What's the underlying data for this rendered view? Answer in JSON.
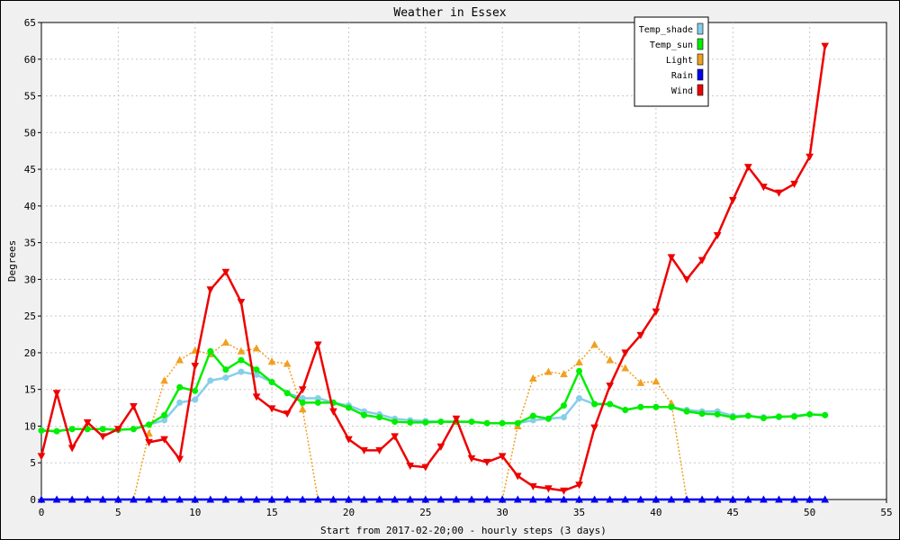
{
  "chart_data": {
    "type": "line",
    "title": "Weather in Essex",
    "xlabel": "Start from 2017-02-20;00 - hourly steps (3 days)",
    "ylabel": "Degrees",
    "xlim": [
      0,
      55
    ],
    "ylim": [
      0,
      65
    ],
    "xticks": [
      0,
      5,
      10,
      15,
      20,
      25,
      30,
      35,
      40,
      45,
      50,
      55
    ],
    "yticks": [
      0,
      5,
      10,
      15,
      20,
      25,
      30,
      35,
      40,
      45,
      50,
      55,
      60,
      65
    ],
    "grid": true,
    "legend_position": "top-right",
    "x": [
      0,
      1,
      2,
      3,
      4,
      5,
      6,
      7,
      8,
      9,
      10,
      11,
      12,
      13,
      14,
      15,
      16,
      17,
      18,
      19,
      20,
      21,
      22,
      23,
      24,
      25,
      26,
      27,
      28,
      29,
      30,
      31,
      32,
      33,
      34,
      35,
      36,
      37,
      38,
      39,
      40,
      41,
      42,
      43,
      44,
      45,
      46,
      47,
      48,
      49,
      50,
      51
    ],
    "series": [
      {
        "name": "Temp_shade",
        "color": "#87ceeb",
        "style": "solid",
        "marker": "circle",
        "values": [
          9.4,
          9.3,
          9.6,
          9.6,
          9.6,
          9.5,
          9.6,
          10.2,
          10.8,
          13.2,
          13.6,
          16.2,
          16.6,
          17.4,
          17,
          16,
          14.5,
          13.8,
          13.8,
          13.2,
          12.8,
          12,
          11.6,
          11,
          10.8,
          10.7,
          10.6,
          10.6,
          10.6,
          10.4,
          10.4,
          10.4,
          10.8,
          11,
          11.2,
          13.8,
          13,
          13,
          12.2,
          12.6,
          12.6,
          12.6,
          12.2,
          12,
          12,
          11.4,
          11.4,
          11.2,
          11.2,
          11.4,
          11.6,
          11.5
        ]
      },
      {
        "name": "Temp_sun",
        "color": "#00ee00",
        "style": "solid",
        "marker": "circle",
        "values": [
          9.4,
          9.3,
          9.6,
          9.6,
          9.6,
          9.5,
          9.6,
          10.2,
          11.5,
          15.3,
          14.8,
          20.2,
          17.7,
          19,
          17.7,
          16,
          14.5,
          13.2,
          13.2,
          13.2,
          12.5,
          11.5,
          11.2,
          10.6,
          10.5,
          10.5,
          10.6,
          10.6,
          10.6,
          10.4,
          10.4,
          10.4,
          11.4,
          11,
          12.8,
          17.5,
          13,
          13,
          12.2,
          12.6,
          12.6,
          12.6,
          12,
          11.7,
          11.6,
          11.2,
          11.4,
          11.1,
          11.3,
          11.3,
          11.6,
          11.5
        ]
      },
      {
        "name": "Light",
        "color": "#f0a020",
        "style": "dotted",
        "marker": "triangle-up",
        "values": [
          0,
          0,
          0,
          0,
          0,
          0,
          0,
          9,
          16.2,
          19,
          20.3,
          19.8,
          21.4,
          20.2,
          20.6,
          18.8,
          18.5,
          12.3,
          0,
          0,
          0,
          0,
          0,
          0,
          0,
          0,
          0,
          0,
          0,
          0,
          0,
          10,
          16.5,
          17.4,
          17.1,
          18.7,
          21.1,
          19,
          17.9,
          15.9,
          16.1,
          13.1,
          0,
          0,
          0,
          0,
          0,
          0,
          0,
          0,
          0,
          0
        ]
      },
      {
        "name": "Rain",
        "color": "#0000ee",
        "style": "solid",
        "marker": "triangle-up",
        "values": [
          0,
          0,
          0,
          0,
          0,
          0,
          0,
          0,
          0,
          0,
          0,
          0,
          0,
          0,
          0,
          0,
          0,
          0,
          0,
          0,
          0,
          0,
          0,
          0,
          0,
          0,
          0,
          0,
          0,
          0,
          0,
          0,
          0,
          0,
          0,
          0,
          0,
          0,
          0,
          0,
          0,
          0,
          0,
          0,
          0,
          0,
          0,
          0,
          0,
          0,
          0,
          0
        ]
      },
      {
        "name": "Wind",
        "color": "#ee0000",
        "style": "solid",
        "marker": "triangle-down",
        "values": [
          5.9,
          14.5,
          7,
          10.5,
          8.6,
          9.6,
          12.7,
          7.8,
          8.2,
          5.5,
          18.2,
          28.6,
          31,
          26.9,
          14,
          12.4,
          11.7,
          15,
          21.1,
          12,
          8.2,
          6.7,
          6.7,
          8.6,
          4.6,
          4.4,
          7.2,
          11,
          5.6,
          5.1,
          5.9,
          3.2,
          1.8,
          1.5,
          1.2,
          2,
          9.8,
          15.5,
          20,
          22.4,
          25.6,
          33,
          30,
          32.6,
          36,
          40.8,
          45.3,
          42.6,
          41.8,
          43,
          46.7,
          61.8
        ]
      }
    ]
  }
}
